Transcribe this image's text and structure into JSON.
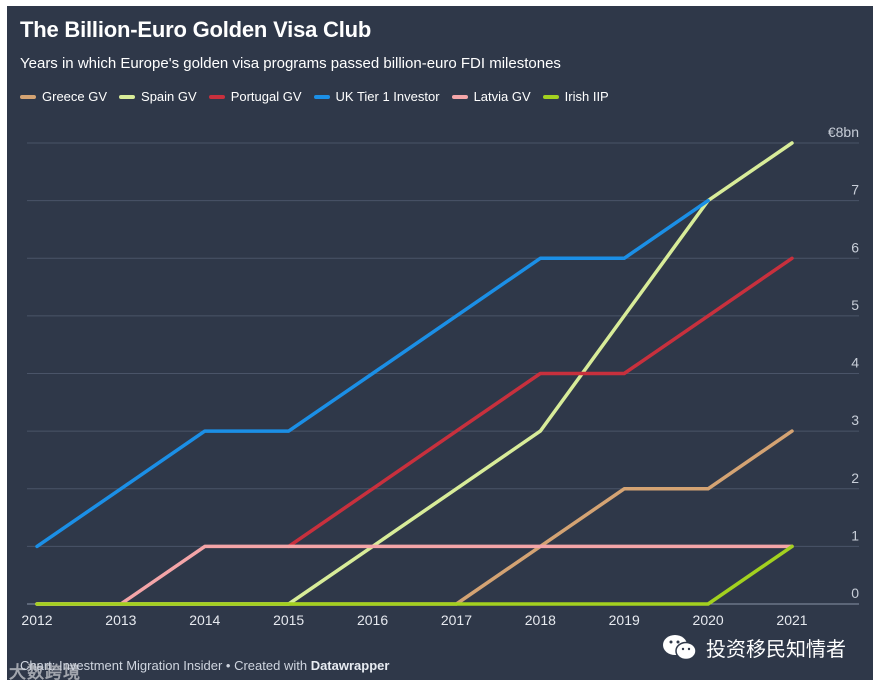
{
  "chart_data": {
    "type": "line",
    "title": "The Billion-Euro Golden Visa Club",
    "subtitle": "Years in which Europe's golden visa programs passed billion-euro FDI milestones",
    "xlabel": "",
    "ylabel": "",
    "x": [
      2012,
      2013,
      2014,
      2015,
      2016,
      2017,
      2018,
      2019,
      2020,
      2021
    ],
    "y_ticks": [
      "0",
      "1",
      "2",
      "3",
      "4",
      "5",
      "6",
      "7",
      "€8bn"
    ],
    "ylim": [
      0,
      8
    ],
    "grid": true,
    "legend_position": "top-left",
    "series": [
      {
        "name": "Greece GV",
        "color": "#d4a373",
        "values": [
          0,
          0,
          0,
          0,
          0,
          0,
          1,
          2,
          2,
          3
        ]
      },
      {
        "name": "Spain GV",
        "color": "#d8ec99",
        "values": [
          0,
          0,
          0,
          0,
          1,
          2,
          3,
          5,
          7,
          8
        ]
      },
      {
        "name": "Portugal GV",
        "color": "#c8303d",
        "values": [
          null,
          null,
          null,
          1,
          2,
          3,
          4,
          4,
          5,
          6
        ]
      },
      {
        "name": "UK Tier 1 Investor",
        "color": "#1b8fe6",
        "values": [
          1,
          2,
          3,
          3,
          4,
          5,
          6,
          6,
          7,
          null
        ]
      },
      {
        "name": "Latvia GV",
        "color": "#f4a5a8",
        "values": [
          0,
          0,
          1,
          1,
          1,
          1,
          1,
          1,
          1,
          1
        ]
      },
      {
        "name": "Irish IIP",
        "color": "#a3d11f",
        "values": [
          0,
          0,
          0,
          0,
          0,
          0,
          0,
          0,
          0,
          1
        ]
      }
    ],
    "credit": {
      "source": "Chart: Investment Migration Insider",
      "separator": " • Created with ",
      "tool": "Datawrapper"
    }
  },
  "watermark": {
    "left": "大数跨境",
    "account": "投资移民知情者"
  }
}
